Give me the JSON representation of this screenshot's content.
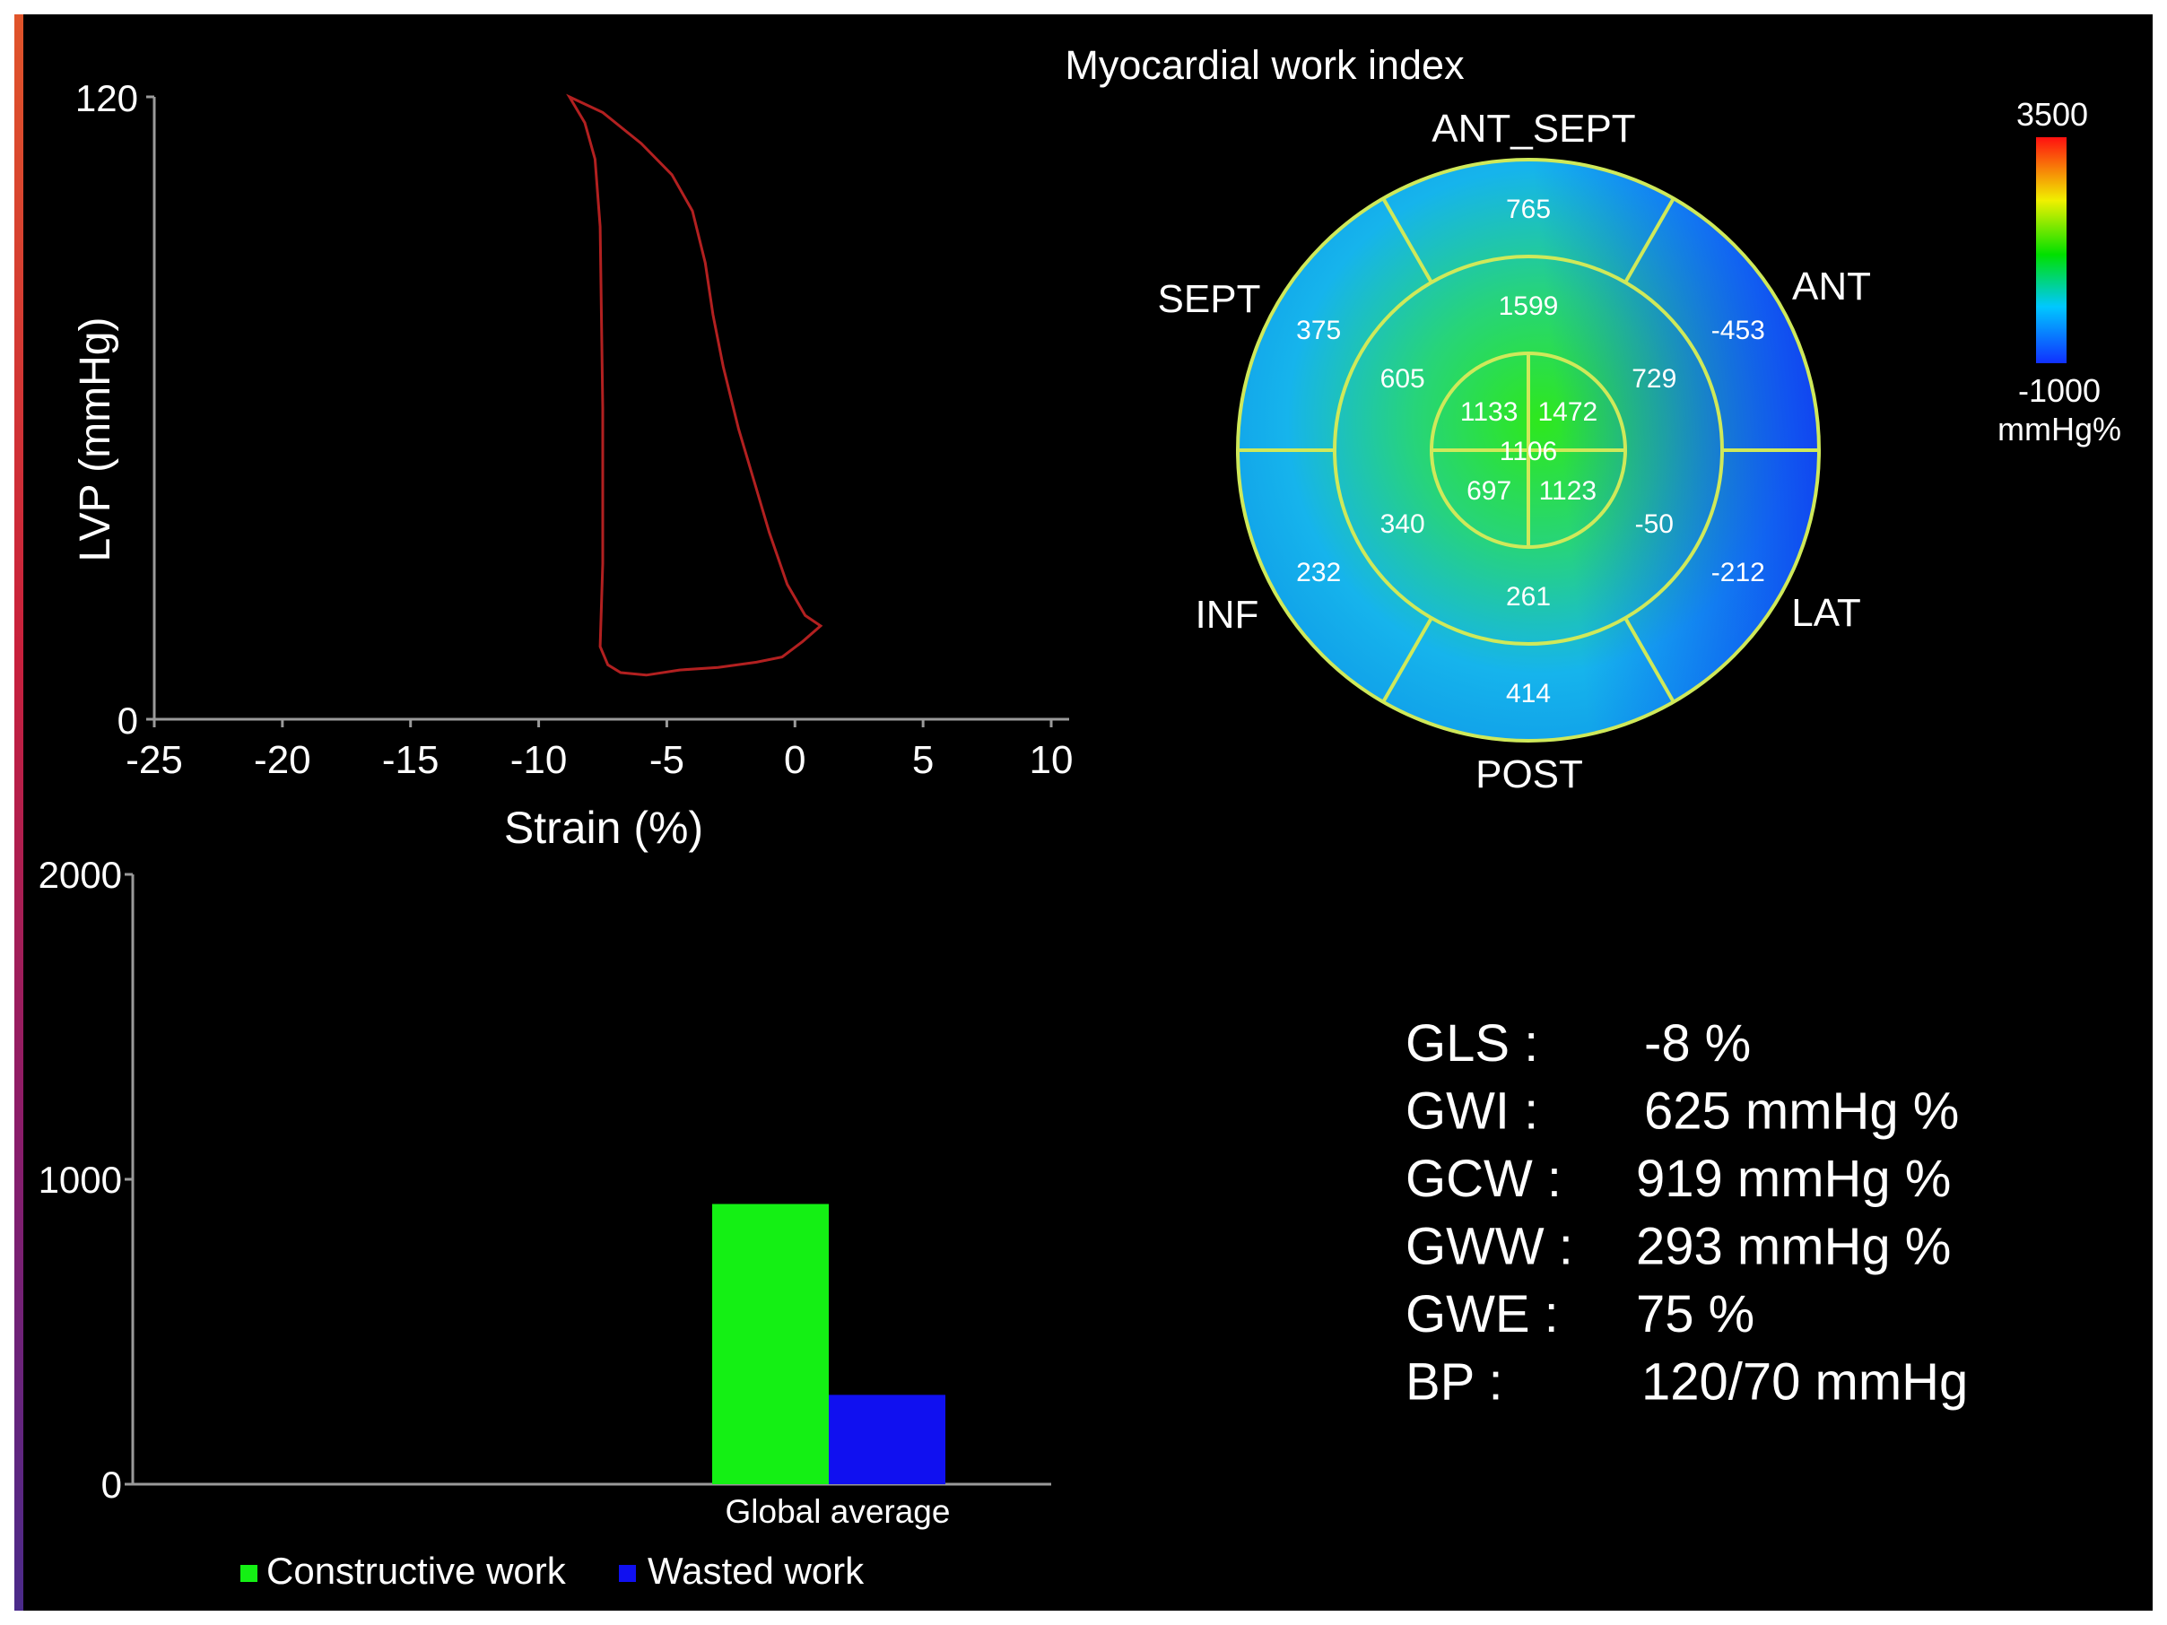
{
  "chart_data": [
    {
      "type": "line",
      "xlabel": "Strain (%)",
      "ylabel": "LVP (mmHg)",
      "xlim": [
        -25,
        10
      ],
      "ylim": [
        0,
        120
      ],
      "x_ticks": [
        "-25",
        "-20",
        "-15",
        "-10",
        "-5",
        "0",
        "5",
        "10"
      ],
      "y_ticks": [
        "0",
        "120"
      ],
      "series": [
        {
          "color": "#b22020",
          "x": [
            -8.8,
            -7.5,
            -6,
            -4.8,
            -4,
            -3.5,
            -3.2,
            -2.8,
            -2.2,
            -1.6,
            -1.0,
            -0.3,
            0.4,
            1.0,
            0.3,
            -0.5,
            -1.5,
            -3,
            -4.5,
            -5.8,
            -6.8,
            -7.3,
            -7.6,
            -7.5,
            -7.5,
            -7.6,
            -7.8,
            -8.2,
            -8.8
          ],
          "y": [
            120,
            117,
            111,
            105,
            98,
            88,
            78,
            68,
            56,
            46,
            36,
            26,
            20,
            18,
            15,
            12,
            11,
            10,
            9.5,
            8.5,
            9,
            10.5,
            14,
            30,
            60,
            95,
            108,
            115,
            120
          ]
        }
      ]
    },
    {
      "type": "heatmap",
      "title": "Myocardial work index",
      "segment_labels": [
        "ANT_SEPT",
        "ANT",
        "LAT",
        "POST",
        "INF",
        "SEPT"
      ],
      "segments": [
        {
          "ring": "basal",
          "wall": "ANT_SEPT",
          "value": 765
        },
        {
          "ring": "basal",
          "wall": "ANT",
          "value": -453
        },
        {
          "ring": "basal",
          "wall": "LAT",
          "value": -212
        },
        {
          "ring": "basal",
          "wall": "POST",
          "value": 414
        },
        {
          "ring": "basal",
          "wall": "INF",
          "value": 232
        },
        {
          "ring": "basal",
          "wall": "SEPT",
          "value": 375
        },
        {
          "ring": "mid",
          "wall": "ANT_SEPT",
          "value": 1599
        },
        {
          "ring": "mid",
          "wall": "ANT",
          "value": 729
        },
        {
          "ring": "mid",
          "wall": "LAT",
          "value": -50
        },
        {
          "ring": "mid",
          "wall": "POST",
          "value": 261
        },
        {
          "ring": "mid",
          "wall": "INF",
          "value": 340
        },
        {
          "ring": "mid",
          "wall": "SEPT",
          "value": 605
        },
        {
          "ring": "apical",
          "wall": "ANT",
          "value": 1472
        },
        {
          "ring": "apical",
          "wall": "LAT",
          "value": 1123
        },
        {
          "ring": "apical",
          "wall": "INF",
          "value": 697
        },
        {
          "ring": "apical",
          "wall": "SEPT",
          "value": 1133
        },
        {
          "ring": "apex",
          "wall": "",
          "value": 1106
        }
      ],
      "colorbar": {
        "max": "3500",
        "min": "-1000",
        "unit": "mmHg%",
        "colors": [
          "#ff1010",
          "#f0f000",
          "#00e000",
          "#00c8ff",
          "#1030ff"
        ]
      }
    },
    {
      "type": "bar",
      "categories": [
        "Global average"
      ],
      "ylim": [
        0,
        2000
      ],
      "y_ticks": [
        "0",
        "1000",
        "2000"
      ],
      "series": [
        {
          "name": "Constructive work",
          "values": [
            919
          ],
          "color": "#14f014"
        },
        {
          "name": "Wasted work",
          "values": [
            293
          ],
          "color": "#1010f0"
        }
      ]
    }
  ],
  "metrics": [
    {
      "label": "GLS :",
      "value": "-8 %"
    },
    {
      "label": "GWI :",
      "value": "625 mmHg %"
    },
    {
      "label": "GCW :",
      "value": "919 mmHg %"
    },
    {
      "label": "GWW :",
      "value": "293 mmHg %"
    },
    {
      "label": "GWE :",
      "value": "75 %"
    },
    {
      "label": "BP :",
      "value": "120/70 mmHg"
    }
  ]
}
